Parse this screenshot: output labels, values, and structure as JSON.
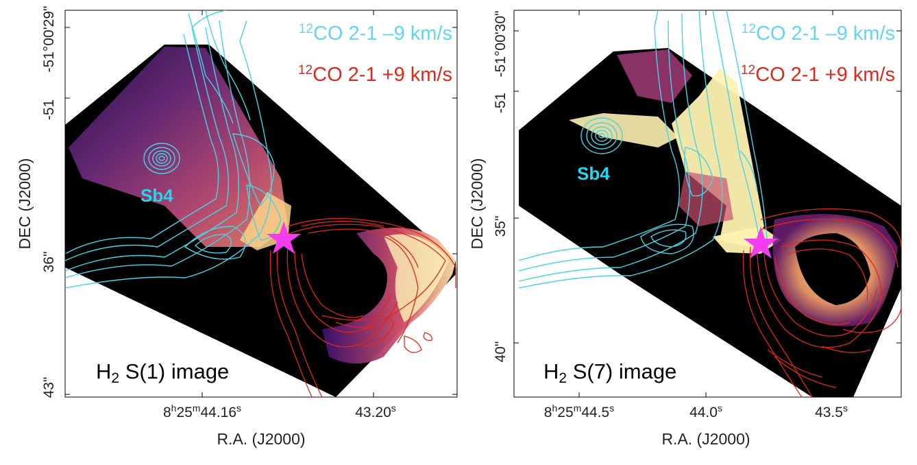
{
  "chart_data": [
    {
      "type": "image",
      "title": "H2 S(1) image",
      "title_main": "H",
      "title_sub": "2",
      "title_rest": " S(1) image",
      "xlabel": "R.A. (J2000)",
      "ylabel": "DEC (J2000)",
      "xticks": [
        {
          "h": "8",
          "m": "25",
          "s": "44.16",
          "hsup": "h",
          "msup": "m",
          "ssup": "s"
        },
        {
          "h": "",
          "m": "",
          "s": "43.20",
          "hsup": "",
          "msup": "",
          "ssup": "s"
        }
      ],
      "yticks": [
        "-51°00'29\"",
        "-51",
        "36\"",
        "43\""
      ],
      "legend": [
        {
          "sup": "12",
          "text": "CO 2-1 –9 km/s",
          "color": "#62d6f0"
        },
        {
          "sup": "12",
          "text": "CO 2-1 +9 km/s",
          "color": "#e0271a"
        }
      ],
      "source_label": "Sb4",
      "colormap": "magma"
    },
    {
      "type": "image",
      "title": "H2 S(7) image",
      "title_main": "H",
      "title_sub": "2",
      "title_rest": " S(7) image",
      "xlabel": "R.A. (J2000)",
      "ylabel": "DEC (J2000)",
      "xticks": [
        {
          "h": "8",
          "m": "25",
          "s": "44.5",
          "hsup": "h",
          "msup": "m",
          "ssup": "s"
        },
        {
          "h": "",
          "m": "",
          "s": "44.0",
          "hsup": "",
          "msup": "",
          "ssup": "s"
        },
        {
          "h": "",
          "m": "",
          "s": "43.5",
          "hsup": "",
          "msup": "",
          "ssup": "s"
        }
      ],
      "yticks": [
        "-51°00'30\"",
        "-51",
        "35\"",
        "40\""
      ],
      "legend": [
        {
          "sup": "12",
          "text": "CO 2-1 –9 km/s",
          "color": "#62d6f0"
        },
        {
          "sup": "12",
          "text": "CO 2-1 +9 km/s",
          "color": "#e0271a"
        }
      ],
      "source_label": "Sb4",
      "colormap": "magma"
    }
  ]
}
